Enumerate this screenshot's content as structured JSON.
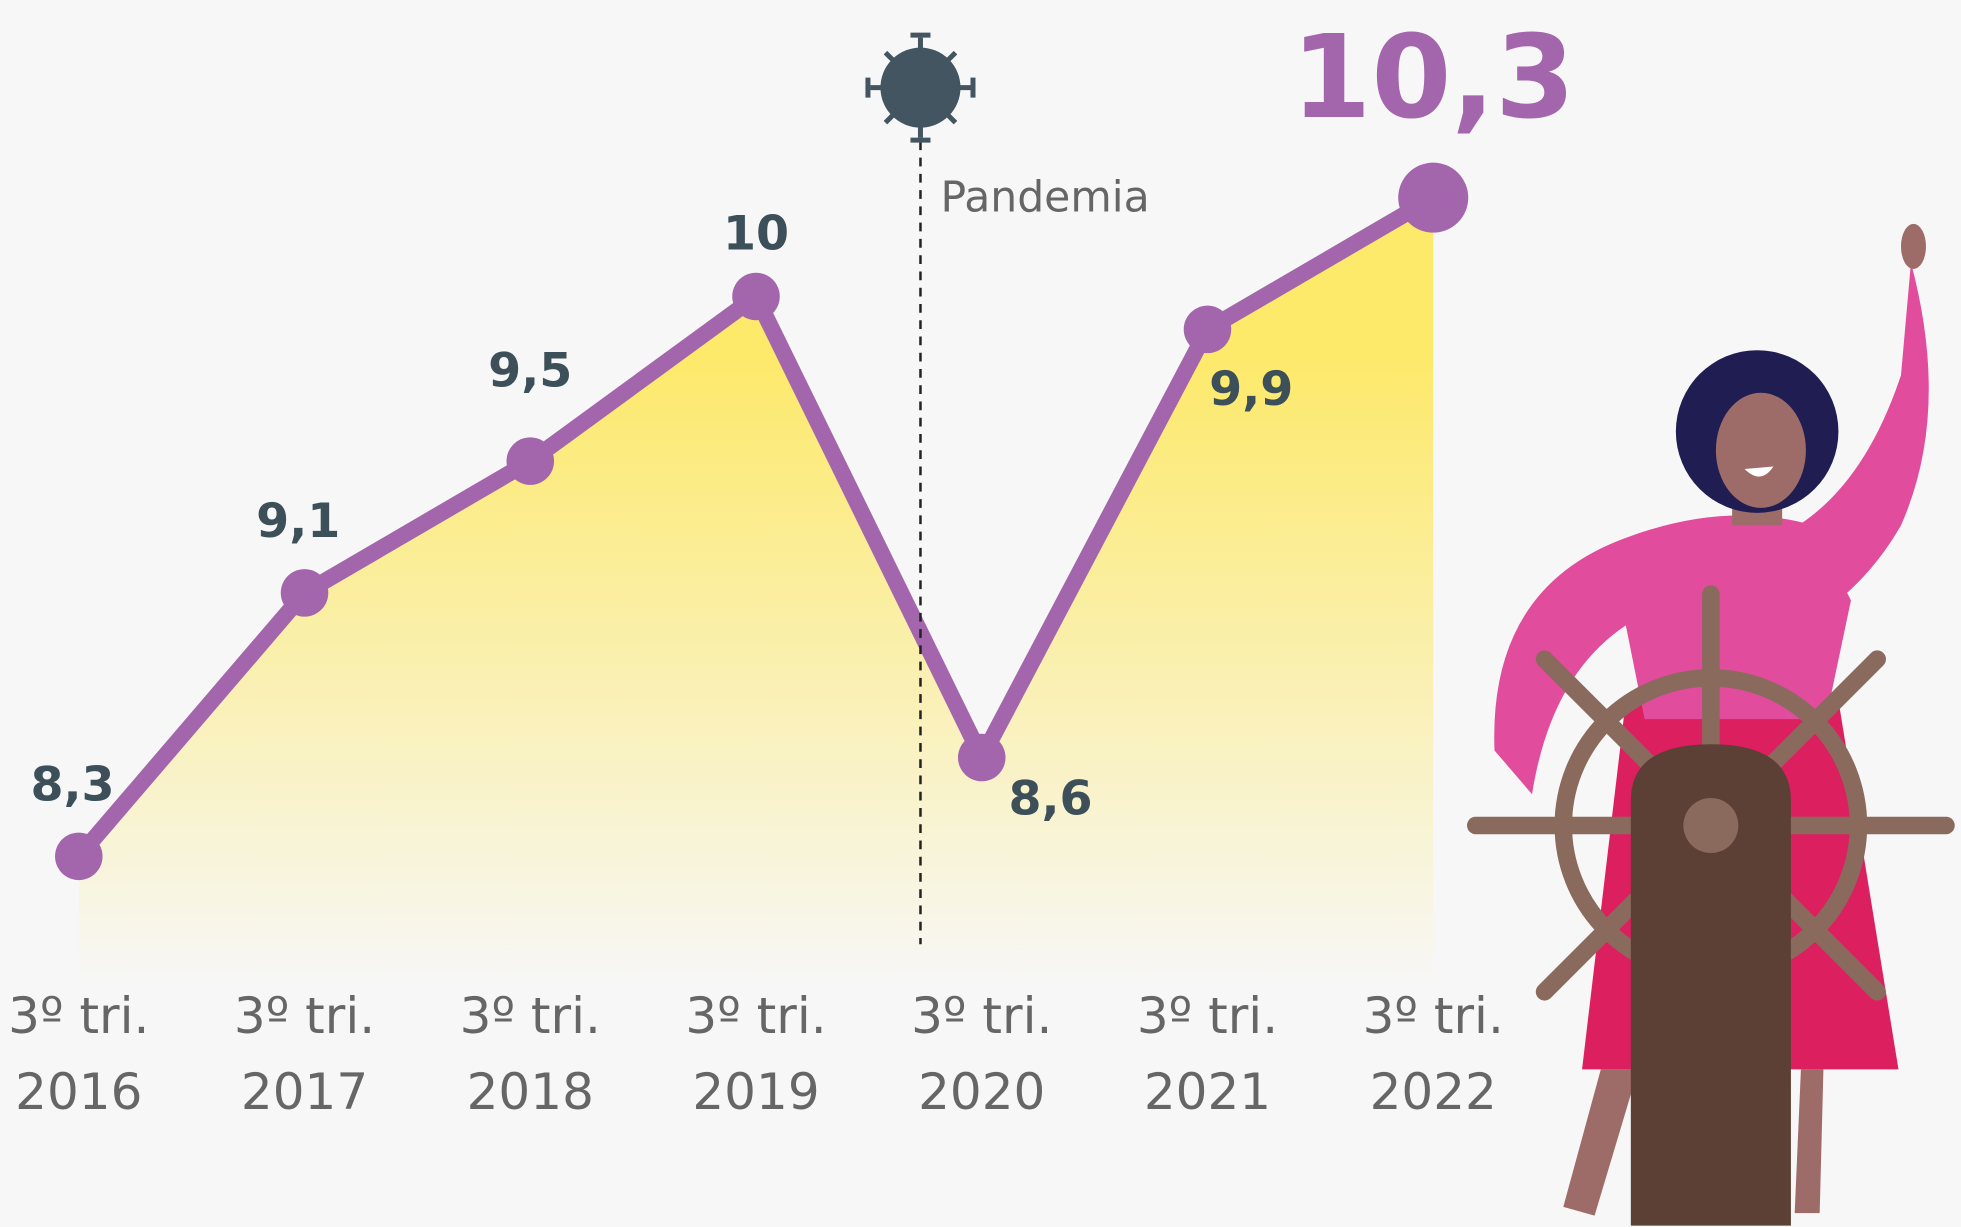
{
  "chart_data": {
    "type": "line",
    "categories": [
      [
        "3º tri.",
        "2016"
      ],
      [
        "3º tri.",
        "2017"
      ],
      [
        "3º tri.",
        "2018"
      ],
      [
        "3º tri.",
        "2019"
      ],
      [
        "3º tri.",
        "2020"
      ],
      [
        "3º tri.",
        "2021"
      ],
      [
        "3º tri.",
        "2022"
      ]
    ],
    "values": [
      8.3,
      9.1,
      9.5,
      10,
      8.6,
      9.9,
      10.3
    ],
    "value_labels": [
      "8,3",
      "9,1",
      "9,5",
      "10",
      "8,6",
      "9,9",
      "10,3"
    ],
    "color": "#a365ab",
    "area_color": "#fde96a",
    "ylim": [
      7.9,
      10.9
    ],
    "annotation": "Pandemia"
  }
}
